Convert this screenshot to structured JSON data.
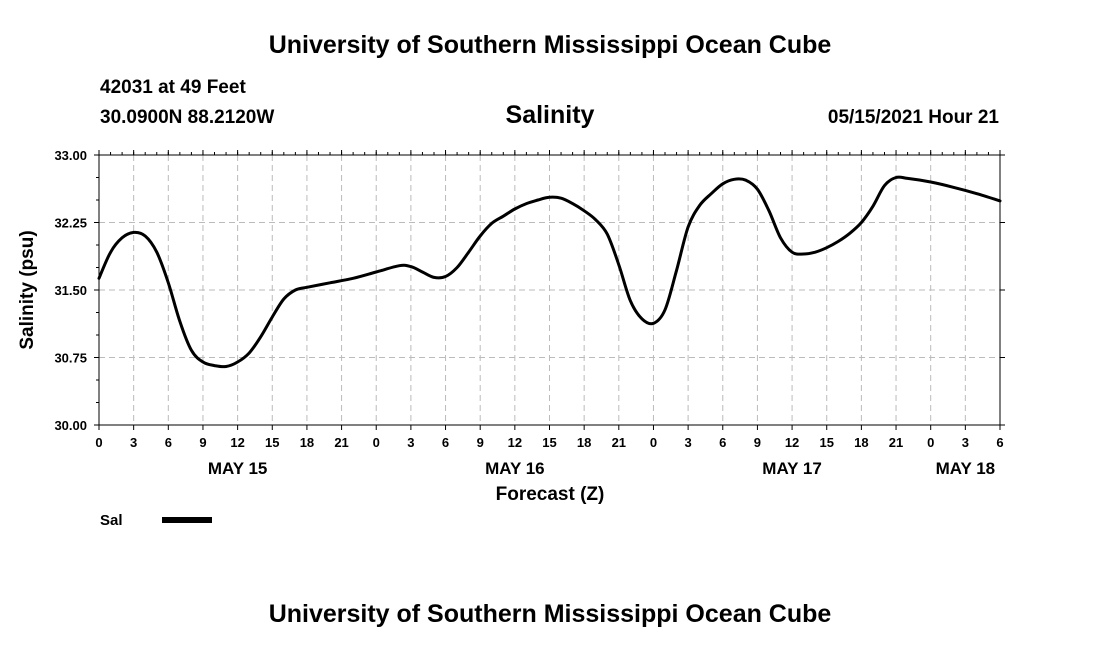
{
  "header": {
    "top_title": "University of Southern Mississippi Ocean Cube",
    "station": "42031 at 49 Feet",
    "coords": "30.0900N  88.2120W",
    "timestamp": "05/15/2021 Hour 21",
    "bottom_title": "University of Southern Mississippi Ocean Cube"
  },
  "chart_data": {
    "type": "line",
    "title": "Salinity",
    "xlabel": "Forecast (Z)",
    "ylabel": "Salinity (psu)",
    "ylim": [
      30.0,
      33.0
    ],
    "yticks": [
      30.0,
      30.75,
      31.5,
      32.25,
      33.0
    ],
    "ytick_labels": [
      "30.00",
      "30.75",
      "31.50",
      "32.25",
      "33.00"
    ],
    "xlim": [
      0,
      78
    ],
    "xticks": [
      0,
      3,
      6,
      9,
      12,
      15,
      18,
      21,
      24,
      27,
      30,
      33,
      36,
      39,
      42,
      45,
      48,
      51,
      54,
      57,
      60,
      63,
      66,
      69,
      72,
      75,
      78
    ],
    "xtick_labels": [
      "0",
      "3",
      "6",
      "9",
      "12",
      "15",
      "18",
      "21",
      "0",
      "3",
      "6",
      "9",
      "12",
      "15",
      "18",
      "21",
      "0",
      "3",
      "6",
      "9",
      "12",
      "15",
      "18",
      "21",
      "0",
      "3",
      "6"
    ],
    "day_labels": [
      {
        "label": "MAY 15",
        "hour": 12
      },
      {
        "label": "MAY 16",
        "hour": 36
      },
      {
        "label": "MAY 17",
        "hour": 60
      },
      {
        "label": "MAY 18",
        "hour": 75
      }
    ],
    "grid": true,
    "legend": [
      {
        "name": "Sal",
        "position": "bottom-left"
      }
    ],
    "series": [
      {
        "name": "Sal",
        "x": [
          0,
          1,
          2,
          3,
          4,
          5,
          6,
          7,
          8,
          9,
          10,
          11,
          12,
          13,
          14,
          15,
          16,
          17,
          18,
          20,
          22,
          24,
          26,
          27,
          28,
          29,
          30,
          31,
          32,
          33,
          34,
          35,
          36,
          37,
          38,
          39,
          40,
          41,
          42,
          43,
          44,
          45,
          46,
          47,
          48,
          49,
          50,
          51,
          52,
          53,
          54,
          55,
          56,
          57,
          58,
          59,
          60,
          61,
          62,
          63,
          64,
          65,
          66,
          67,
          68,
          69,
          70,
          72,
          74,
          76,
          78
        ],
        "y": [
          31.63,
          31.92,
          32.08,
          32.14,
          32.1,
          31.92,
          31.58,
          31.15,
          30.83,
          30.7,
          30.66,
          30.65,
          30.7,
          30.8,
          30.98,
          31.2,
          31.4,
          31.5,
          31.53,
          31.58,
          31.63,
          31.7,
          31.77,
          31.76,
          31.7,
          31.64,
          31.65,
          31.75,
          31.92,
          32.1,
          32.24,
          32.32,
          32.4,
          32.46,
          32.5,
          32.53,
          32.52,
          32.46,
          32.38,
          32.28,
          32.12,
          31.78,
          31.38,
          31.18,
          31.13,
          31.28,
          31.72,
          32.2,
          32.44,
          32.57,
          32.68,
          32.73,
          32.72,
          32.62,
          32.38,
          32.08,
          31.92,
          31.9,
          31.92,
          31.97,
          32.04,
          32.13,
          32.25,
          32.43,
          32.66,
          32.75,
          32.74,
          32.7,
          32.64,
          32.57,
          32.49
        ]
      }
    ]
  }
}
